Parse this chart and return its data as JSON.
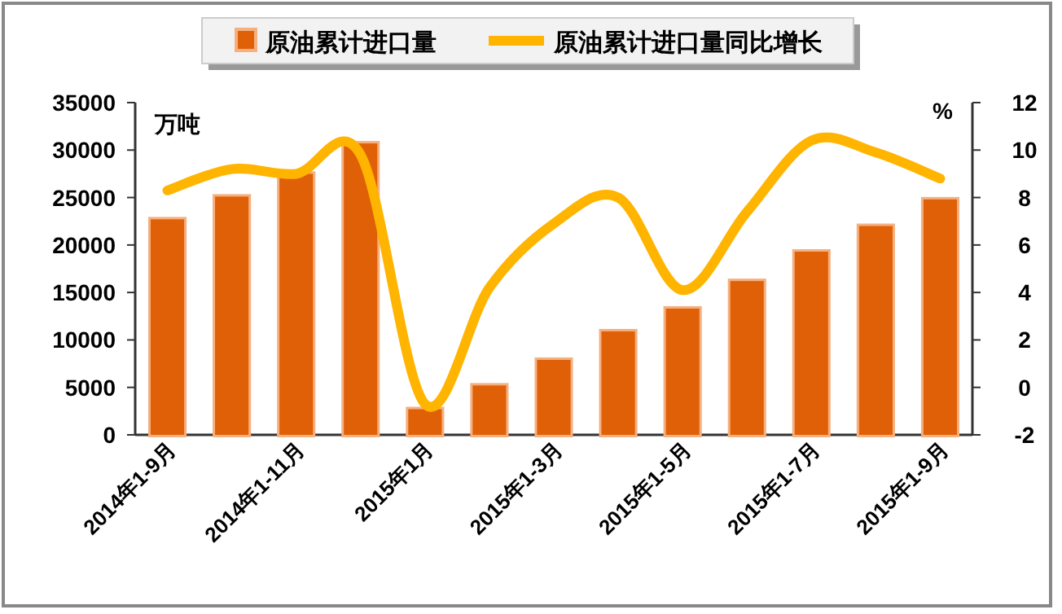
{
  "chart_data": {
    "type": "bar",
    "categories": [
      "2014年1-9月",
      null,
      "2014年1-11月",
      null,
      "2015年1月",
      null,
      "2015年1-3月",
      null,
      "2015年1-5月",
      null,
      "2015年1-7月",
      null,
      "2015年1-9月"
    ],
    "series": [
      {
        "name": "原油累计进口量",
        "color": "#e06008",
        "values": [
          22700,
          25100,
          27500,
          30700,
          2700,
          5200,
          7900,
          10900,
          13300,
          16200,
          19300,
          22000,
          24800
        ]
      },
      {
        "name": "原油累计进口量同比增长",
        "type": "line",
        "axis": "y2",
        "color": "#ffb400",
        "values": [
          8.3,
          9.2,
          9.0,
          9.8,
          -0.7,
          4.2,
          6.9,
          8.0,
          4.1,
          7.4,
          10.4,
          9.9,
          8.8
        ]
      }
    ],
    "ylabel": "万吨",
    "y2label": "%",
    "ylim": [
      0,
      35000
    ],
    "yticks": [
      0,
      5000,
      10000,
      15000,
      20000,
      25000,
      30000,
      35000
    ],
    "y2lim": [
      -2,
      12
    ],
    "y2ticks": [
      -2,
      0,
      2,
      4,
      6,
      8,
      10,
      12
    ],
    "legend": "top",
    "grid": false
  }
}
